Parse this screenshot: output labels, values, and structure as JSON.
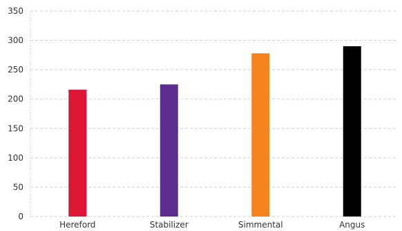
{
  "chart_data": {
    "type": "bar",
    "title": "",
    "xlabel": "",
    "ylabel": "",
    "categories": [
      "Hereford",
      "Stabilizer",
      "Simmental",
      "Angus"
    ],
    "values": [
      216,
      225,
      278,
      290
    ],
    "colors": [
      "#dc1634",
      "#5b2d8e",
      "#f5841f",
      "#000000"
    ],
    "ylim": [
      0,
      350
    ],
    "yticks": [
      0,
      50,
      100,
      150,
      200,
      250,
      300,
      350
    ],
    "grid": true,
    "legend": "none"
  }
}
